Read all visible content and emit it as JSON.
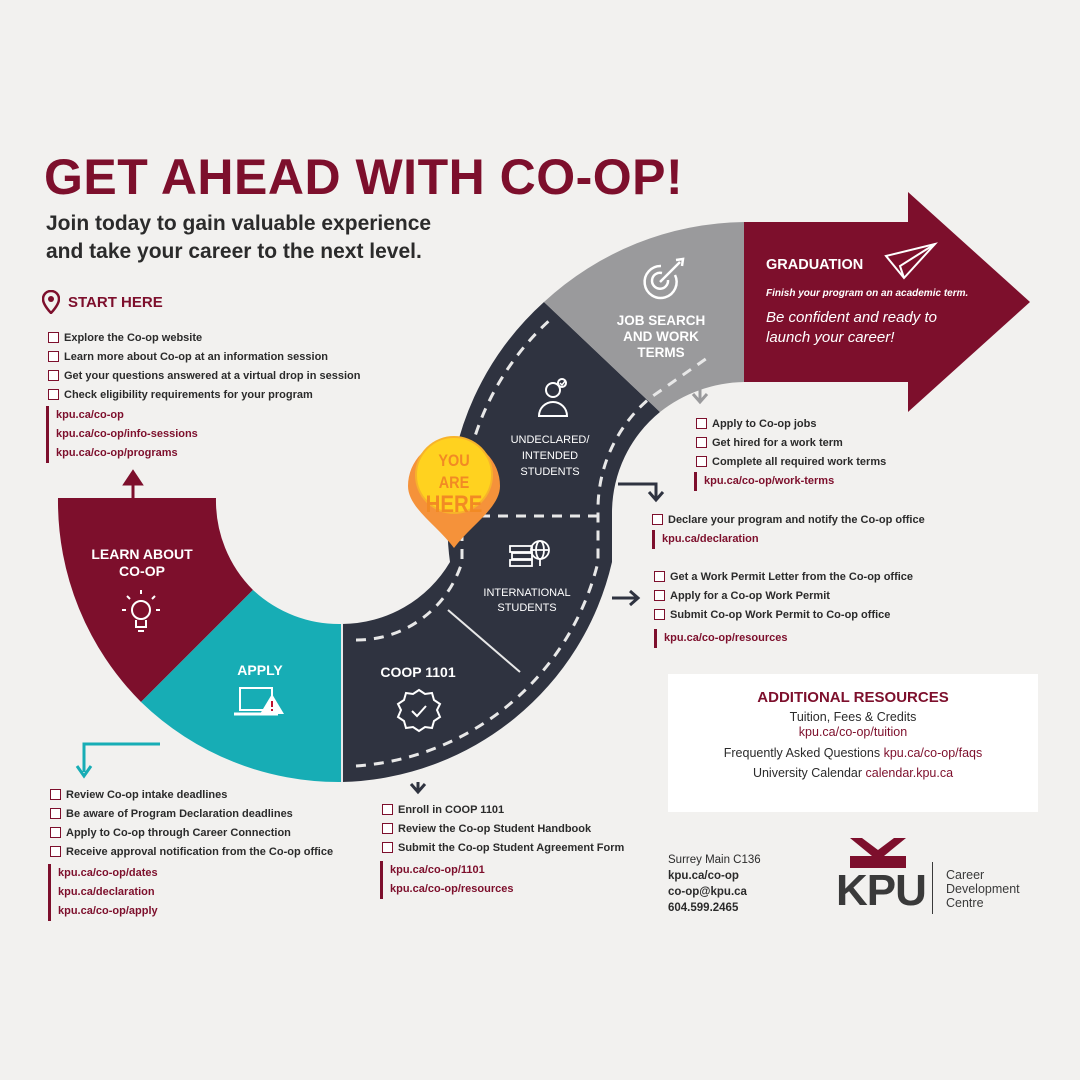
{
  "header": {
    "title": "GET AHEAD WITH CO-OP!",
    "subtitle_line1": "Join today to gain valuable experience",
    "subtitle_line2": "and take your career to the next level."
  },
  "start_here": {
    "label": "START HERE",
    "items": [
      "Explore the Co-op website",
      "Learn more about Co-op at an information session",
      "Get your questions answered at a virtual drop in session",
      "Check eligibility requirements for your program"
    ],
    "links": [
      "kpu.ca/co-op",
      "kpu.ca/co-op/info-sessions",
      "kpu.ca/co-op/programs"
    ]
  },
  "path": {
    "learn": {
      "line1": "LEARN ABOUT",
      "line2": "CO-OP",
      "icon": "lightbulb-icon"
    },
    "apply": {
      "label": "APPLY",
      "icon": "laptop-warning-icon"
    },
    "coop1101": {
      "label": "COOP 1101",
      "icon": "badge-check-icon"
    },
    "international": {
      "line1": "INTERNATIONAL",
      "line2": "STUDENTS",
      "icon": "books-globe-icon"
    },
    "undeclared": {
      "line1": "UNDECLARED/",
      "line2": "INTENDED",
      "line3": "STUDENTS",
      "icon": "student-icon"
    },
    "job_search": {
      "line1": "JOB SEARCH",
      "line2": "AND WORK",
      "line3": "TERMS",
      "icon": "target-icon"
    },
    "graduation": {
      "label": "GRADUATION",
      "note": "Finish your program on an academic term.",
      "line1": "Be confident and ready to",
      "line2": "launch your career!",
      "icon": "paper-plane-icon"
    },
    "you_are_here": {
      "line1": "YOU ARE",
      "line2": "HERE"
    }
  },
  "apply_steps": {
    "items": [
      "Review Co-op intake deadlines",
      "Be aware of Program Declaration deadlines",
      "Apply to Co-op through Career Connection",
      "Receive approval notification from the Co-op office"
    ],
    "links": [
      "kpu.ca/co-op/dates",
      "kpu.ca/declaration",
      "kpu.ca/co-op/apply"
    ]
  },
  "coop1101_steps": {
    "items": [
      "Enroll in COOP 1101",
      "Review the Co-op Student Handbook",
      "Submit the Co-op Student Agreement Form"
    ],
    "links": [
      "kpu.ca/co-op/1101",
      "kpu.ca/co-op/resources"
    ]
  },
  "international_steps": {
    "items": [
      "Get a Work Permit Letter from the Co-op office",
      "Apply for a Co-op Work Permit",
      "Submit Co-op Work Permit to Co-op office"
    ],
    "links": [
      "kpu.ca/co-op/resources"
    ]
  },
  "undeclared_steps": {
    "items": [
      "Declare your program and notify the Co-op office"
    ],
    "links": [
      "kpu.ca/declaration"
    ]
  },
  "job_steps": {
    "items": [
      "Apply to Co-op jobs",
      "Get hired for a work term",
      "Complete all required work terms"
    ],
    "links": [
      "kpu.ca/co-op/work-terms"
    ]
  },
  "resources": {
    "heading": "ADDITIONAL RESOURCES",
    "tuition_label": "Tuition, Fees & Credits",
    "tuition_link": "kpu.ca/co-op/tuition",
    "faq_label": "Frequently Asked Questions",
    "faq_link": "kpu.ca/co-op/faqs",
    "calendar_label": "University Calendar",
    "calendar_link": "calendar.kpu.ca"
  },
  "contact": {
    "location": "Surrey Main C136",
    "web": "kpu.ca/co-op",
    "email": "co-op@kpu.ca",
    "phone": "604.599.2465"
  },
  "logo": {
    "wordmark": "KPU",
    "line1": "Career",
    "line2": "Development",
    "line3": "Centre"
  },
  "colors": {
    "maroon": "#7d0f2c",
    "teal": "#17adb5",
    "navy": "#2f3340",
    "grey": "#9a9a9c",
    "orange": "#f5923a",
    "yellow": "#ffd21f"
  }
}
